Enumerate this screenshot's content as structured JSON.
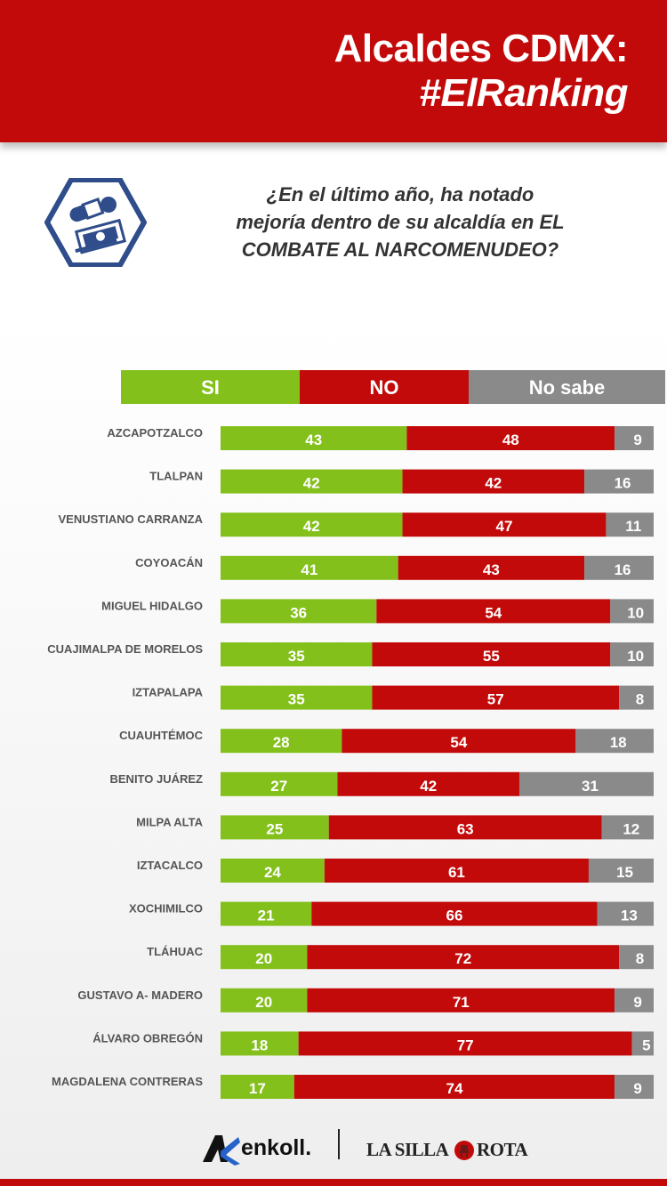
{
  "header": {
    "title_line1": "Alcaldes CDMX:",
    "title_line2": "#ElRanking"
  },
  "question": {
    "line1": "¿En el último año, ha notado",
    "line2": "mejoría dentro de su alcaldía en EL",
    "line3": "COMBATE AL NARCOMENUDEO?",
    "icon": "drugs-and-money-icon"
  },
  "colors": {
    "si": "#84c01c",
    "no": "#c30a0a",
    "no_sabe": "#8a8a8a",
    "label": "#555555"
  },
  "chart_data": {
    "type": "bar",
    "orientation": "horizontal",
    "stacked": true,
    "legend": [
      "SI",
      "NO",
      "No sabe"
    ],
    "legend_position": "top",
    "xlim": [
      0,
      100
    ],
    "categories": [
      "AZCAPOTZALCO",
      "TLALPAN",
      "VENUSTIANO CARRANZA",
      "COYOACÁN",
      "MIGUEL HIDALGO",
      "CUAJIMALPA DE MORELOS",
      "IZTAPALAPA",
      "CUAUHTÉMOC",
      "BENITO JUÁREZ",
      "MILPA ALTA",
      "IZTACALCO",
      "XOCHIMILCO",
      "TLÁHUAC",
      "GUSTAVO A- MADERO",
      "ÁLVARO OBREGÓN",
      "MAGDALENA CONTRERAS"
    ],
    "series": [
      {
        "name": "SI",
        "values": [
          43,
          42,
          42,
          41,
          36,
          35,
          35,
          28,
          27,
          25,
          24,
          21,
          20,
          20,
          18,
          17
        ]
      },
      {
        "name": "NO",
        "values": [
          48,
          42,
          47,
          43,
          54,
          55,
          57,
          54,
          42,
          63,
          61,
          66,
          72,
          71,
          77,
          74
        ]
      },
      {
        "name": "No sabe",
        "values": [
          9,
          16,
          11,
          16,
          10,
          10,
          8,
          18,
          31,
          12,
          15,
          13,
          8,
          9,
          5,
          9
        ]
      }
    ]
  },
  "footer": {
    "brand1": "enkoll.",
    "brand2_a": "LA SILLA",
    "brand2_b": "ROTA"
  }
}
